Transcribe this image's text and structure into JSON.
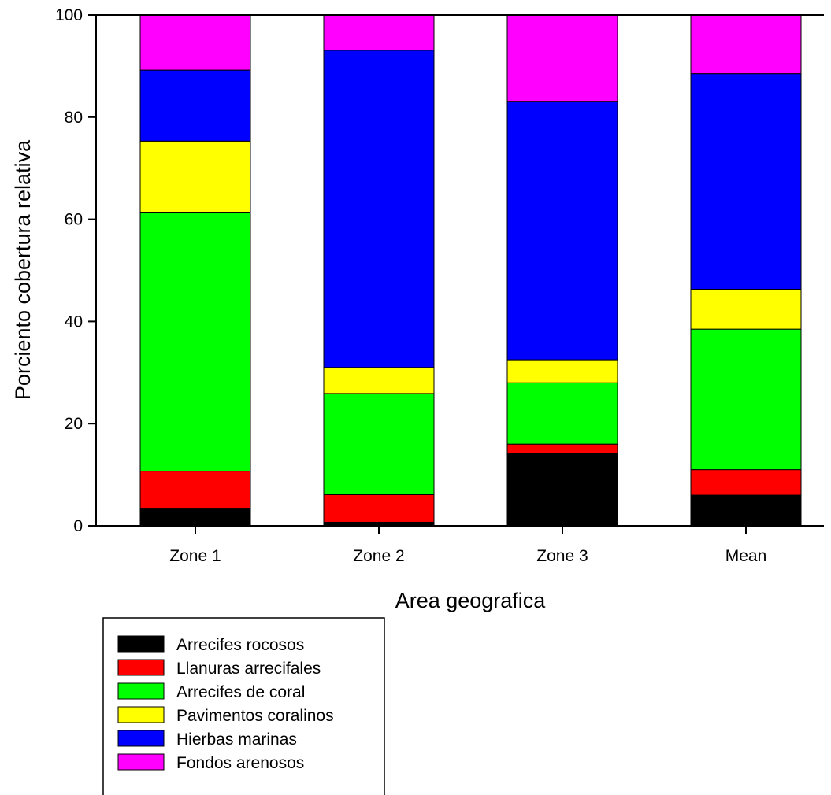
{
  "chart_data": {
    "type": "bar",
    "stacked": true,
    "title": "",
    "xlabel": "Area geografica",
    "ylabel": "Porciento cobertura relativa",
    "ylim": [
      0,
      100
    ],
    "yticks": [
      "0",
      "20",
      "40",
      "60",
      "80",
      "100"
    ],
    "grid": false,
    "legend_position": "bottom-left",
    "categories": [
      "Zone 1",
      "Zone 2",
      "Zone 3",
      "Mean"
    ],
    "series": [
      {
        "name": "Arrecifes rocosos",
        "color": "#000000",
        "values": [
          3.3,
          0.7,
          14.2,
          6.0
        ]
      },
      {
        "name": "Llanuras arrecifales",
        "color": "#ff0000",
        "values": [
          7.4,
          5.4,
          1.8,
          5.0
        ]
      },
      {
        "name": "Arrecifes de coral",
        "color": "#00ff00",
        "values": [
          50.7,
          19.8,
          12.0,
          27.5
        ]
      },
      {
        "name": "Pavimentos coralinos",
        "color": "#ffff00",
        "values": [
          13.9,
          5.1,
          4.5,
          7.8
        ]
      },
      {
        "name": "Hierbas marinas",
        "color": "#0000ff",
        "values": [
          13.9,
          62.1,
          50.6,
          42.2
        ]
      },
      {
        "name": "Fondos arenosos",
        "color": "#ff00ff",
        "values": [
          10.8,
          6.9,
          16.9,
          11.5
        ]
      }
    ]
  }
}
